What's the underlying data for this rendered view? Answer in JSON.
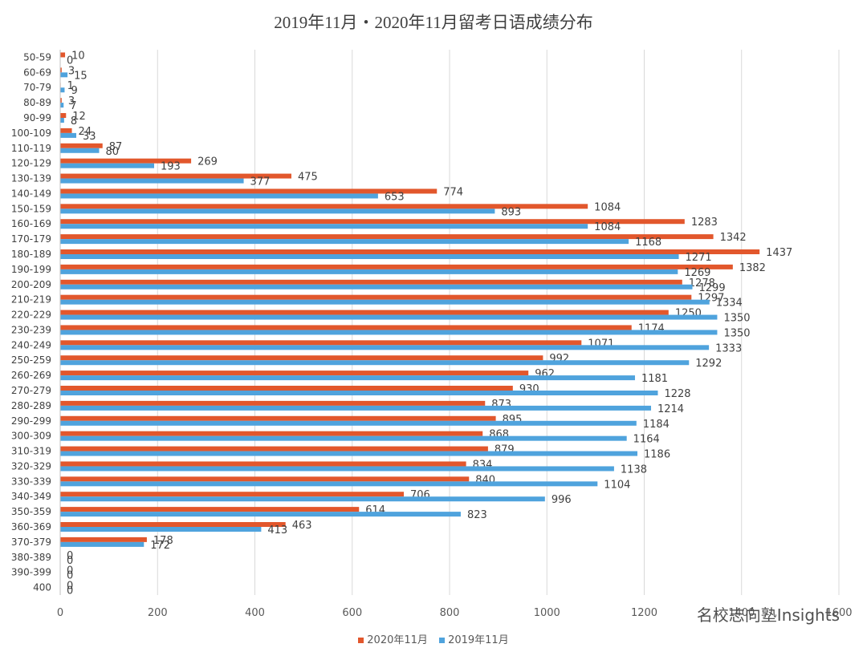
{
  "chart_data": {
    "type": "bar",
    "orientation": "horizontal",
    "title": "2019年11月・2020年11月留考日语成绩分布",
    "categories": [
      "50-59",
      "60-69",
      "70-79",
      "80-89",
      "90-99",
      "100-109",
      "110-119",
      "120-129",
      "130-139",
      "140-149",
      "150-159",
      "160-169",
      "170-179",
      "180-189",
      "190-199",
      "200-209",
      "210-219",
      "220-229",
      "230-239",
      "240-249",
      "250-259",
      "260-269",
      "270-279",
      "280-289",
      "290-299",
      "300-309",
      "310-319",
      "320-329",
      "330-339",
      "340-349",
      "350-359",
      "360-369",
      "370-379",
      "380-389",
      "390-399",
      "400"
    ],
    "series": [
      {
        "name": "2020年11月",
        "color": "#E2572C",
        "values": [
          10,
          3,
          1,
          3,
          12,
          24,
          87,
          269,
          475,
          774,
          1084,
          1283,
          1342,
          1437,
          1382,
          1278,
          1297,
          1250,
          1174,
          1071,
          992,
          962,
          930,
          873,
          895,
          868,
          879,
          834,
          840,
          706,
          614,
          463,
          178,
          0,
          0,
          0
        ]
      },
      {
        "name": "2019年11月",
        "color": "#4FA3DD",
        "values": [
          0,
          15,
          9,
          7,
          8,
          33,
          80,
          193,
          377,
          653,
          893,
          1084,
          1168,
          1271,
          1269,
          1299,
          1334,
          1350,
          1350,
          1333,
          1292,
          1181,
          1228,
          1214,
          1184,
          1164,
          1186,
          1138,
          1104,
          996,
          823,
          413,
          172,
          0,
          0,
          0
        ]
      }
    ],
    "xlim": [
      0,
      1600
    ],
    "xticks": [
      0,
      200,
      400,
      600,
      800,
      1000,
      1200,
      1400,
      1600
    ],
    "xtick_labels": [
      "0",
      "200",
      "400",
      "600",
      "800",
      "1000",
      "1200",
      "1400",
      "1600"
    ],
    "grid": true,
    "legend_position": "bottom"
  },
  "watermark": "名校志向塾Insights"
}
